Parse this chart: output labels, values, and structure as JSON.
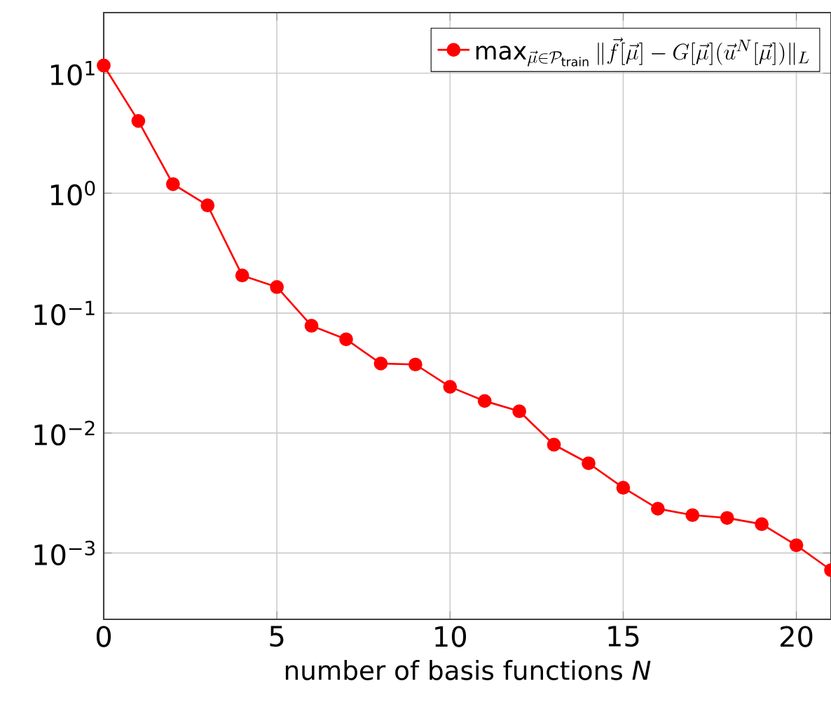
{
  "chart_data": {
    "type": "line",
    "xlabel": "number of basis functions *N*",
    "x": [
      0,
      1,
      2,
      3,
      4,
      5,
      6,
      7,
      8,
      9,
      10,
      11,
      12,
      13,
      14,
      15,
      16,
      17,
      18,
      19,
      20,
      21
    ],
    "series": [
      {
        "name": "\\max_{\\vec{\\mu}\\in\\mathcal{P}_{\\mathrm{train}}} \\|\\vec{f}[\\vec{\\mu}]-G[\\vec{\\mu}](\\vec{u}^N[\\vec{\\mu}])\\|_L",
        "color": "#ff0000",
        "values": [
          11.6,
          4.0,
          1.19,
          0.79,
          0.206,
          0.165,
          0.0785,
          0.0605,
          0.038,
          0.0373,
          0.0243,
          0.0185,
          0.0152,
          0.008,
          0.0056,
          0.0035,
          0.00234,
          0.00207,
          0.00196,
          0.00174,
          0.00116,
          0.00072
        ]
      }
    ],
    "xlim": [
      0,
      21
    ],
    "ylim": [
      0.00028,
      32
    ],
    "log": "y",
    "xticks": [
      0,
      5,
      10,
      15,
      20
    ],
    "yticks": [
      {
        "value": 0.001,
        "label": "10$^{−3}$"
      },
      {
        "value": 0.01,
        "label": "10$^{−2}$"
      },
      {
        "value": 0.1,
        "label": "10$^{−1}$"
      },
      {
        "value": 1,
        "label": "10$^{0}$"
      },
      {
        "value": 10,
        "label": "10$^{1}$"
      }
    ],
    "grid": true,
    "legend": "top right",
    "marker": "circle",
    "line_style": "solid"
  }
}
